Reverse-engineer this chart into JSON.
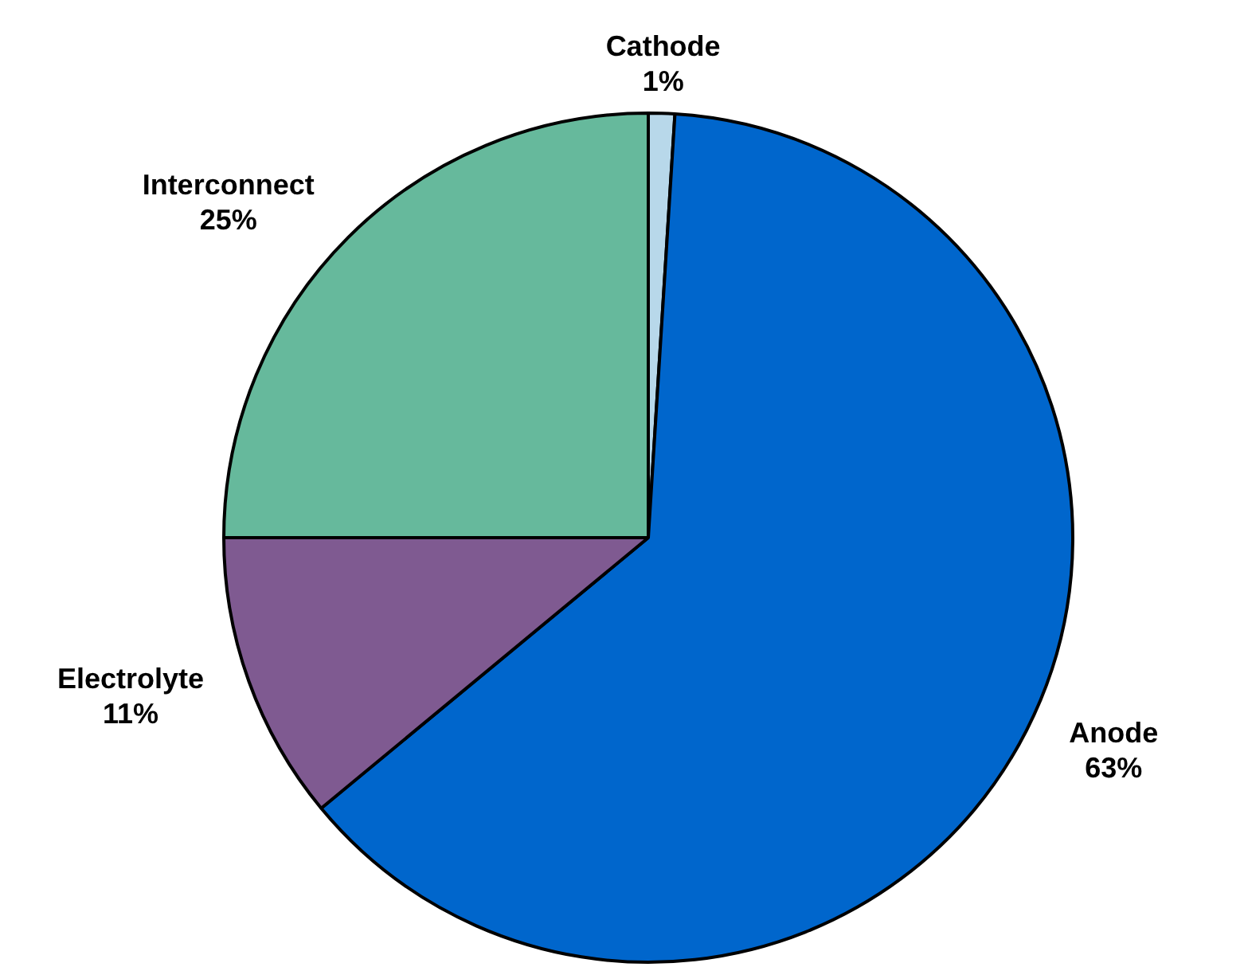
{
  "chart_data": {
    "type": "pie",
    "categories": [
      "Cathode",
      "Anode",
      "Electrolyte",
      "Interconnect"
    ],
    "values": [
      1,
      63,
      11,
      25
    ],
    "colors": [
      "#b8d8ea",
      "#0066cc",
      "#7f5a91",
      "#66b99c"
    ],
    "value_labels": [
      "1%",
      "63%",
      "11%",
      "25%"
    ],
    "legend": false
  }
}
